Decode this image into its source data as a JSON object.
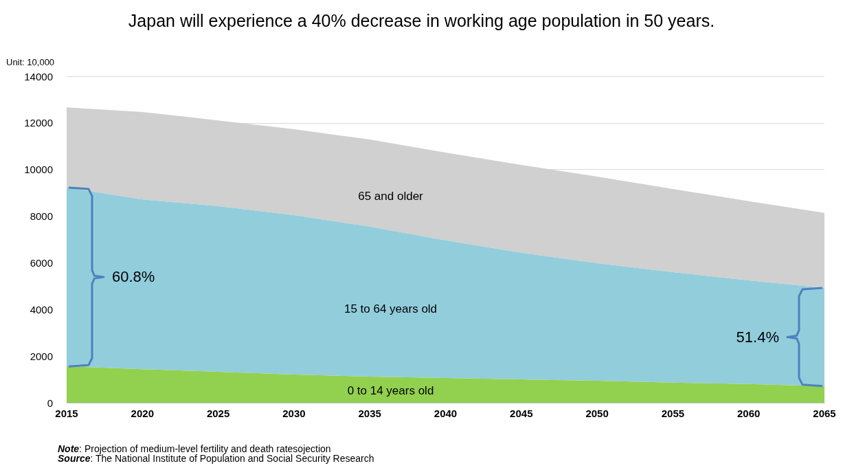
{
  "chart_data": {
    "type": "area",
    "title": "Japan will experience a 40% decrease in working age population in 50 years.",
    "ylabel": "Unit: 10,000",
    "stacked": true,
    "x": [
      2015,
      2020,
      2025,
      2030,
      2035,
      2040,
      2045,
      2050,
      2055,
      2060,
      2065
    ],
    "series": [
      {
        "name": "0 to 14 years old",
        "color": "#92d050",
        "values": [
          1560,
          1440,
          1330,
          1210,
          1120,
          1060,
          1000,
          940,
          860,
          800,
          710
        ]
      },
      {
        "name": "15 to 64 years old",
        "color": "#92cddc",
        "values": [
          7670,
          7280,
          7100,
          6840,
          6430,
          5900,
          5430,
          5040,
          4740,
          4450,
          4210
        ]
      },
      {
        "name": "65 and older",
        "color": "#d0d0d0",
        "values": [
          3440,
          3750,
          3680,
          3680,
          3740,
          3770,
          3770,
          3720,
          3570,
          3390,
          3220
        ]
      }
    ],
    "xlim": [
      2015,
      2065
    ],
    "xticks": [
      2015,
      2020,
      2025,
      2030,
      2035,
      2040,
      2045,
      2050,
      2055,
      2060,
      2065
    ],
    "ylim": [
      0,
      14000
    ],
    "yticks": [
      0,
      2000,
      4000,
      6000,
      8000,
      10000,
      12000,
      14000
    ],
    "grid": "y",
    "legend": false,
    "annotations": [
      "60.8%",
      "51.4%",
      "Note: Projection of medium-level fertility and death ratesojection",
      "Source: The National Institute of Population and Social Security Research"
    ]
  }
}
